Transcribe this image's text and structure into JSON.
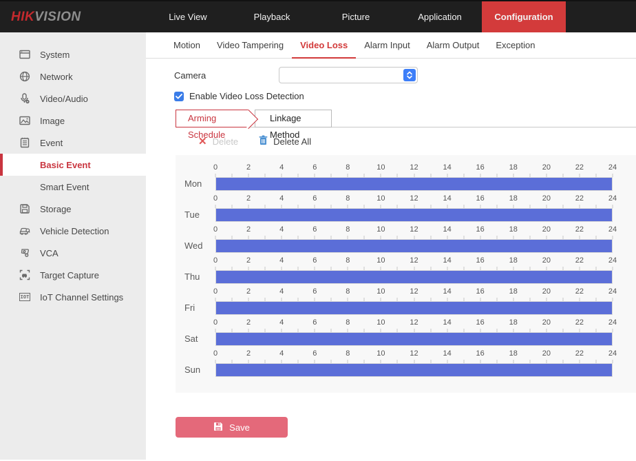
{
  "topbar": {
    "logo": {
      "hik": "HIK",
      "vision": "VISION"
    },
    "nav": [
      {
        "label": "Live View",
        "active": false
      },
      {
        "label": "Playback",
        "active": false
      },
      {
        "label": "Picture",
        "active": false
      },
      {
        "label": "Application",
        "active": false
      },
      {
        "label": "Configuration",
        "active": true
      }
    ]
  },
  "sidebar": {
    "items": [
      {
        "label": "System",
        "icon": "system-icon",
        "child": false,
        "selected": false
      },
      {
        "label": "Network",
        "icon": "network-icon",
        "child": false,
        "selected": false
      },
      {
        "label": "Video/Audio",
        "icon": "video-audio-icon",
        "child": false,
        "selected": false
      },
      {
        "label": "Image",
        "icon": "image-icon",
        "child": false,
        "selected": false
      },
      {
        "label": "Event",
        "icon": "event-icon",
        "child": false,
        "selected": false
      },
      {
        "label": "Basic Event",
        "icon": null,
        "child": true,
        "selected": true
      },
      {
        "label": "Smart Event",
        "icon": null,
        "child": true,
        "selected": false
      },
      {
        "label": "Storage",
        "icon": "storage-icon",
        "child": false,
        "selected": false
      },
      {
        "label": "Vehicle Detection",
        "icon": "vehicle-detection-icon",
        "child": false,
        "selected": false
      },
      {
        "label": "VCA",
        "icon": "vca-icon",
        "child": false,
        "selected": false
      },
      {
        "label": "Target Capture",
        "icon": "target-capture-icon",
        "child": false,
        "selected": false
      },
      {
        "label": "IoT Channel Settings",
        "icon": "iot-icon",
        "child": false,
        "selected": false
      }
    ]
  },
  "main": {
    "tabs": [
      {
        "label": "Motion",
        "active": false
      },
      {
        "label": "Video Tampering",
        "active": false
      },
      {
        "label": "Video Loss",
        "active": true
      },
      {
        "label": "Alarm Input",
        "active": false
      },
      {
        "label": "Alarm Output",
        "active": false
      },
      {
        "label": "Exception",
        "active": false
      }
    ],
    "camera": {
      "label": "Camera",
      "value": ""
    },
    "enable_checkbox": {
      "label": "Enable Video Loss Detection",
      "checked": true
    },
    "subtabs": [
      {
        "label": "Arming Schedule",
        "active": true
      },
      {
        "label": "Linkage Method",
        "active": false
      }
    ],
    "toolbar": {
      "delete_label": "Delete",
      "delete_enabled": false,
      "delete_all_label": "Delete All"
    },
    "save_label": "Save"
  },
  "schedule": {
    "days": [
      "Mon",
      "Tue",
      "Wed",
      "Thu",
      "Fri",
      "Sat",
      "Sun"
    ],
    "hour_labels": [
      0,
      2,
      4,
      6,
      8,
      10,
      12,
      14,
      16,
      18,
      20,
      22,
      24
    ],
    "axis_range": [
      0,
      24
    ],
    "bars": [
      {
        "day": "Mon",
        "start": 0,
        "end": 24
      },
      {
        "day": "Tue",
        "start": 0,
        "end": 24
      },
      {
        "day": "Wed",
        "start": 0,
        "end": 24
      },
      {
        "day": "Thu",
        "start": 0,
        "end": 24
      },
      {
        "day": "Fri",
        "start": 0,
        "end": 24
      },
      {
        "day": "Sat",
        "start": 0,
        "end": 24
      },
      {
        "day": "Sun",
        "start": 0,
        "end": 24
      }
    ],
    "bar_color": "#5b6ed8"
  },
  "colors": {
    "accent_red": "#d33b3b",
    "tab_red": "#d23a3a",
    "save_pink": "#e4697a",
    "bar_blue": "#5b6ed8",
    "checkbox_blue": "#3a7ce8",
    "spinner_blue": "#3d7ef8",
    "topbar_bg": "#1f1f1f",
    "sidebar_bg": "#ececec",
    "panel_bg": "#f8f8f8"
  }
}
